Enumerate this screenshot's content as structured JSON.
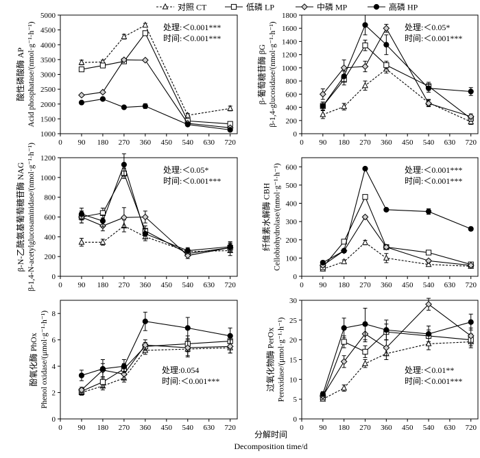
{
  "legend": [
    {
      "name": "对照 CT",
      "marker": "triangle",
      "dashed": true
    },
    {
      "name": "低磷 LP",
      "marker": "square",
      "dashed": false
    },
    {
      "name": "中磷 MP",
      "marker": "diamond",
      "dashed": false
    },
    {
      "name": "高磷 HP",
      "marker": "circle",
      "dashed": false
    }
  ],
  "xaxis": {
    "label_cn": "分解时间",
    "label_en": "Decomposition time/d"
  },
  "chart_data": [
    {
      "type": "line",
      "x": [
        90,
        180,
        270,
        360,
        540,
        720
      ],
      "xticks": [
        0,
        90,
        180,
        270,
        360,
        450,
        540,
        630,
        720
      ],
      "ylim": [
        1000,
        5000
      ],
      "yticks": [
        1000,
        1500,
        2000,
        2500,
        3000,
        3500,
        4000,
        4500,
        5000
      ],
      "ylabel_cn": "酸性磷酸酶 AP",
      "ylabel_en": "Acid phosphatase/(nmol·g⁻¹·h⁻¹)",
      "annotation": [
        "处理:＜0.001***",
        "时间:＜0.001***"
      ],
      "series": [
        {
          "name": "对照 CT",
          "values": [
            3400,
            3420,
            4270,
            4660,
            1620,
            1850
          ],
          "errors": [
            80,
            60,
            80,
            60,
            60,
            80
          ]
        },
        {
          "name": "低磷 LP",
          "values": [
            3170,
            3300,
            3440,
            4390,
            1430,
            1330
          ],
          "errors": [
            40,
            50,
            40,
            80,
            40,
            40
          ]
        },
        {
          "name": "中磷 MP",
          "values": [
            2300,
            2400,
            3490,
            3480,
            1350,
            1200
          ],
          "errors": [
            40,
            40,
            40,
            40,
            30,
            30
          ]
        },
        {
          "name": "高磷 HP",
          "values": [
            2050,
            2170,
            1890,
            1930,
            1310,
            1130
          ],
          "errors": [
            30,
            30,
            30,
            80,
            30,
            30
          ]
        }
      ]
    },
    {
      "type": "line",
      "x": [
        90,
        180,
        270,
        360,
        540,
        720
      ],
      "xticks": [
        0,
        90,
        180,
        270,
        360,
        450,
        540,
        630,
        720
      ],
      "ylim": [
        0,
        1800
      ],
      "yticks": [
        0,
        200,
        400,
        600,
        800,
        1000,
        1200,
        1400,
        1600,
        1800
      ],
      "ylabel_cn": "β-葡萄糖苷酶 βG",
      "ylabel_en": "β-1,4-glucosidase/(nmol·g⁻¹·h⁻¹)",
      "annotation": [
        "处理:＜0.05*",
        "时间:＜0.001***"
      ],
      "series": [
        {
          "name": "对照 CT",
          "values": [
            290,
            410,
            730,
            980,
            470,
            180
          ],
          "errors": [
            60,
            50,
            70,
            60,
            50,
            40
          ]
        },
        {
          "name": "低磷 LP",
          "values": [
            420,
            820,
            1340,
            1040,
            720,
            230
          ],
          "errors": [
            60,
            80,
            80,
            60,
            60,
            40
          ]
        },
        {
          "name": "中磷 MP",
          "values": [
            600,
            1000,
            1020,
            1600,
            460,
            260
          ],
          "errors": [
            80,
            120,
            80,
            60,
            50,
            40
          ]
        },
        {
          "name": "高磷 HP",
          "values": [
            420,
            870,
            1650,
            1350,
            690,
            640
          ],
          "errors": [
            60,
            80,
            150,
            150,
            60,
            60
          ]
        }
      ]
    },
    {
      "type": "line",
      "x": [
        90,
        180,
        270,
        360,
        540,
        720
      ],
      "xticks": [
        0,
        90,
        180,
        270,
        360,
        450,
        540,
        630,
        720
      ],
      "ylim": [
        0,
        1200
      ],
      "yticks": [
        0,
        200,
        400,
        600,
        800,
        1000,
        1200
      ],
      "ylabel_cn": "β-N-乙酰氨基葡萄糖苷酶 NAG",
      "ylabel_en": "β-1,4-N-acetylglucosaminidase/(nmol·g⁻¹·h⁻¹)",
      "annotation": [
        "处理:＜0.05*",
        "时间:＜0.001***"
      ],
      "series": [
        {
          "name": "对照 CT",
          "values": [
            345,
            345,
            510,
            400,
            250,
            260
          ],
          "errors": [
            40,
            30,
            60,
            40,
            30,
            50
          ]
        },
        {
          "name": "低磷 LP",
          "values": [
            600,
            640,
            1040,
            460,
            230,
            290
          ],
          "errors": [
            60,
            50,
            50,
            50,
            30,
            50
          ]
        },
        {
          "name": "中磷 MP",
          "values": [
            600,
            510,
            595,
            600,
            210,
            290
          ],
          "errors": [
            60,
            50,
            100,
            60,
            30,
            40
          ]
        },
        {
          "name": "高磷 HP",
          "values": [
            630,
            560,
            1130,
            430,
            260,
            300
          ],
          "errors": [
            60,
            60,
            110,
            50,
            30,
            50
          ]
        }
      ]
    },
    {
      "type": "line",
      "x": [
        90,
        180,
        270,
        360,
        540,
        720
      ],
      "xticks": [
        0,
        90,
        180,
        270,
        360,
        450,
        540,
        630,
        720
      ],
      "ylim": [
        0,
        650
      ],
      "yticks": [
        0,
        100,
        200,
        300,
        400,
        500,
        600
      ],
      "ylabel_cn": "纤维素水解酶 CBH",
      "ylabel_en": "Cellobiohydrolase/(nmol·g⁻¹·h⁻¹)",
      "annotation": [
        "处理:＜0.001***",
        "时间:＜0.001***"
      ],
      "series": [
        {
          "name": "对照 CT",
          "values": [
            40,
            80,
            185,
            100,
            65,
            55
          ],
          "errors": [
            10,
            10,
            12,
            25,
            10,
            8
          ]
        },
        {
          "name": "低磷 LP",
          "values": [
            50,
            190,
            435,
            160,
            130,
            65
          ],
          "errors": [
            10,
            12,
            8,
            10,
            10,
            8
          ]
        },
        {
          "name": "中磷 MP",
          "values": [
            60,
            140,
            325,
            160,
            85,
            60
          ],
          "errors": [
            10,
            10,
            8,
            10,
            8,
            8
          ]
        },
        {
          "name": "高磷 HP",
          "values": [
            75,
            140,
            590,
            365,
            355,
            260
          ],
          "errors": [
            10,
            10,
            8,
            8,
            15,
            8
          ]
        }
      ]
    },
    {
      "type": "line",
      "x": [
        90,
        180,
        270,
        360,
        540,
        720
      ],
      "xticks": [
        0,
        90,
        180,
        270,
        360,
        450,
        540,
        630,
        720
      ],
      "ylim": [
        0,
        9
      ],
      "yticks": [
        0,
        2,
        4,
        6,
        8
      ],
      "ylabel_cn": "酚氧化酶 PhOx",
      "ylabel_en": "Phenol oxidase/(μmol·g⁻¹·h⁻¹)",
      "annotation": [
        "处理:0.054",
        "时间:＜0.001***"
      ],
      "series": [
        {
          "name": "对照 CT",
          "values": [
            2.0,
            2.5,
            3.1,
            5.2,
            5.3,
            5.4
          ],
          "errors": [
            0.2,
            0.3,
            0.3,
            0.3,
            0.6,
            0.4
          ]
        },
        {
          "name": "低磷 LP",
          "values": [
            2.1,
            2.8,
            3.8,
            5.5,
            5.7,
            5.9
          ],
          "errors": [
            0.2,
            0.4,
            0.4,
            0.3,
            0.6,
            0.5
          ]
        },
        {
          "name": "中磷 MP",
          "values": [
            2.2,
            3.7,
            3.4,
            5.6,
            5.4,
            5.5
          ],
          "errors": [
            0.2,
            0.5,
            0.4,
            0.4,
            0.6,
            0.5
          ]
        },
        {
          "name": "高磷 HP",
          "values": [
            3.3,
            3.8,
            4.0,
            7.4,
            6.9,
            6.3
          ],
          "errors": [
            0.4,
            0.7,
            0.5,
            0.7,
            0.8,
            0.6
          ]
        }
      ]
    },
    {
      "type": "line",
      "x": [
        90,
        180,
        270,
        360,
        540,
        720
      ],
      "xticks": [
        0,
        90,
        180,
        270,
        360,
        450,
        540,
        630,
        720
      ],
      "ylim": [
        0,
        30
      ],
      "yticks": [
        0,
        5,
        10,
        15,
        20,
        25,
        30
      ],
      "ylabel_cn": "过氧化物酶 PerOx",
      "ylabel_en": "Peroxidase/(μmol·g⁻¹·h⁻¹)",
      "annotation": [
        "处理:＜0.01**",
        "时间:＜0.001***"
      ],
      "series": [
        {
          "name": "对照 CT",
          "values": [
            5.0,
            7.8,
            14.0,
            16.5,
            19.0,
            19.5
          ],
          "errors": [
            0.5,
            0.8,
            1.0,
            1.5,
            1.5,
            1.5
          ]
        },
        {
          "name": "低磷 LP",
          "values": [
            5.5,
            19.5,
            17.0,
            22.0,
            21.0,
            20.0
          ],
          "errors": [
            0.5,
            1.5,
            1.5,
            2.0,
            1.5,
            1.5
          ]
        },
        {
          "name": "中磷 MP",
          "values": [
            5.8,
            14.5,
            21.5,
            18.0,
            29.0,
            21.0
          ],
          "errors": [
            0.5,
            1.5,
            2.0,
            2.0,
            1.5,
            2.0
          ]
        },
        {
          "name": "高磷 HP",
          "values": [
            6.3,
            23.0,
            24.0,
            22.5,
            21.5,
            24.5
          ],
          "errors": [
            0.6,
            2.5,
            4.0,
            2.5,
            2.0,
            2.0
          ]
        }
      ]
    }
  ]
}
